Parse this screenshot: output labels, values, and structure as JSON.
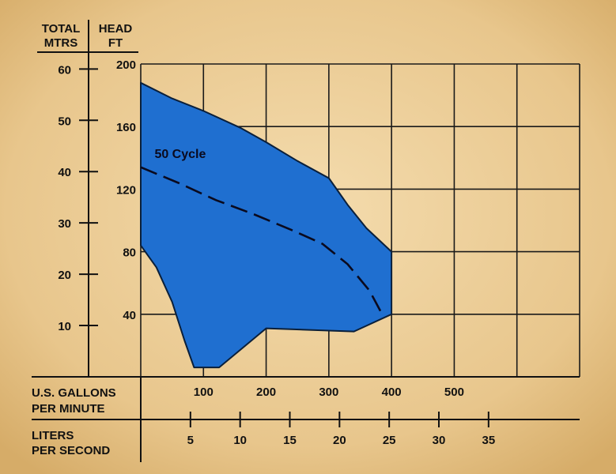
{
  "chart_data": {
    "type": "area",
    "headers": {
      "total_mtrs_line1": "TOTAL",
      "total_mtrs_line2": "MTRS",
      "head_ft_line1": "HEAD",
      "head_ft_line2": "FT",
      "gpm_line1": "U.S. GALLONS",
      "gpm_line2": "PER MINUTE",
      "lps_line1": "LITERS",
      "lps_line2": "PER SECOND"
    },
    "x_axis_gpm": {
      "range": [
        0,
        700
      ],
      "ticks": [
        100,
        200,
        300,
        400,
        500
      ],
      "grid_step": 100
    },
    "x_axis_lps": {
      "ticks": [
        5,
        10,
        15,
        20,
        25,
        30,
        35
      ],
      "gpm_per_lps": 15.85
    },
    "y_axis_ft": {
      "range": [
        0,
        200
      ],
      "ticks": [
        40,
        80,
        120,
        160,
        200
      ],
      "grid_step": 40
    },
    "y_axis_m": {
      "ticks": [
        10,
        20,
        30,
        40,
        50,
        60
      ],
      "ft_per_m": 3.28
    },
    "grid": true,
    "colors": {
      "background": "#e9c990",
      "region_fill": "#1f6fd0",
      "region_stroke": "#0a1f3a",
      "lines": "#111111",
      "dashed": "#0a0a1e"
    },
    "series": [
      {
        "kind": "region",
        "points": [
          [
            0,
            188
          ],
          [
            50,
            178
          ],
          [
            100,
            170
          ],
          [
            160,
            159
          ],
          [
            200,
            150
          ],
          [
            250,
            138
          ],
          [
            300,
            127
          ],
          [
            330,
            110
          ],
          [
            360,
            95
          ],
          [
            400,
            80
          ],
          [
            400,
            40
          ],
          [
            340,
            29
          ],
          [
            200,
            31
          ],
          [
            125,
            6
          ],
          [
            85,
            6
          ],
          [
            70,
            23
          ],
          [
            50,
            48
          ],
          [
            25,
            70
          ],
          [
            0,
            84
          ]
        ]
      },
      {
        "name": "50 Cycle",
        "kind": "dashed",
        "points": [
          [
            0,
            134
          ],
          [
            60,
            124
          ],
          [
            120,
            113
          ],
          [
            180,
            104
          ],
          [
            240,
            94
          ],
          [
            290,
            85
          ],
          [
            330,
            72
          ],
          [
            365,
            55
          ],
          [
            385,
            40
          ]
        ]
      }
    ],
    "annotations": [
      {
        "text": "50 Cycle",
        "x": 22,
        "y": 140
      }
    ]
  }
}
